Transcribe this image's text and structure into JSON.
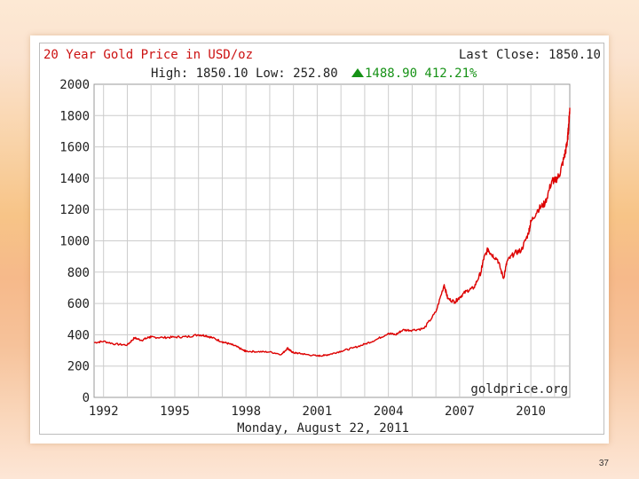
{
  "slide": {
    "page_number": "37"
  },
  "chart": {
    "title": "20 Year Gold Price in USD/oz",
    "last_close_label": "Last Close: 1850.10",
    "high_low_label": "High: 1850.10 Low: 252.80",
    "change_label": "1488.90 412.21%",
    "watermark": "goldprice.org",
    "date_label": "Monday, August 22, 2011"
  },
  "colors": {
    "title": "#cc1111",
    "series": "#dd0000",
    "change_up": "#169216",
    "grid": "#cccccc"
  },
  "chart_data": {
    "type": "line",
    "title": "20 Year Gold Price in USD/oz",
    "xlim": [
      1991.6,
      2011.64
    ],
    "ylim": [
      0,
      2000
    ],
    "yticks": [
      0,
      200,
      400,
      600,
      800,
      1000,
      1200,
      1400,
      1600,
      1800,
      2000
    ],
    "xtick_labels": [
      "1992",
      "1995",
      "1998",
      "2001",
      "2004",
      "2007",
      "2010"
    ],
    "xtick_values": [
      1992,
      1995,
      1998,
      2001,
      2004,
      2007,
      2010
    ],
    "grid": true,
    "series": [
      {
        "x": [
          1991.6,
          1992.0,
          1992.5,
          1993.0,
          1993.3,
          1993.6,
          1993.9,
          1994.0,
          1994.5,
          1995.0,
          1995.5,
          1996.0,
          1996.3,
          1996.6,
          1997.0,
          1997.3,
          1997.6,
          1997.9,
          1998.0,
          1998.5,
          1999.0,
          1999.5,
          1999.75,
          1999.85,
          2000.0,
          2000.2,
          2000.5,
          2001.0,
          2001.3,
          2001.6,
          2002.0,
          2002.5,
          2003.0,
          2003.5,
          2004.0,
          2004.3,
          2004.6,
          2005.0,
          2005.5,
          2006.0,
          2006.35,
          2006.5,
          2006.8,
          2007.0,
          2007.3,
          2007.6,
          2007.9,
          2008.0,
          2008.2,
          2008.3,
          2008.6,
          2008.85,
          2009.0,
          2009.3,
          2009.6,
          2009.9,
          2010.0,
          2010.3,
          2010.6,
          2010.9,
          2011.0,
          2011.2,
          2011.4,
          2011.5,
          2011.55,
          2011.6,
          2011.64
        ],
        "y": [
          350,
          358,
          340,
          335,
          380,
          365,
          383,
          385,
          382,
          385,
          387,
          400,
          395,
          380,
          355,
          342,
          325,
          300,
          295,
          292,
          290,
          275,
          315,
          300,
          285,
          282,
          275,
          265,
          268,
          278,
          295,
          315,
          340,
          370,
          410,
          400,
          430,
          430,
          440,
          545,
          720,
          630,
          610,
          640,
          680,
          700,
          800,
          880,
          950,
          920,
          880,
          760,
          870,
          920,
          940,
          1050,
          1120,
          1200,
          1240,
          1390,
          1380,
          1420,
          1530,
          1600,
          1650,
          1750,
          1850
        ]
      }
    ]
  }
}
